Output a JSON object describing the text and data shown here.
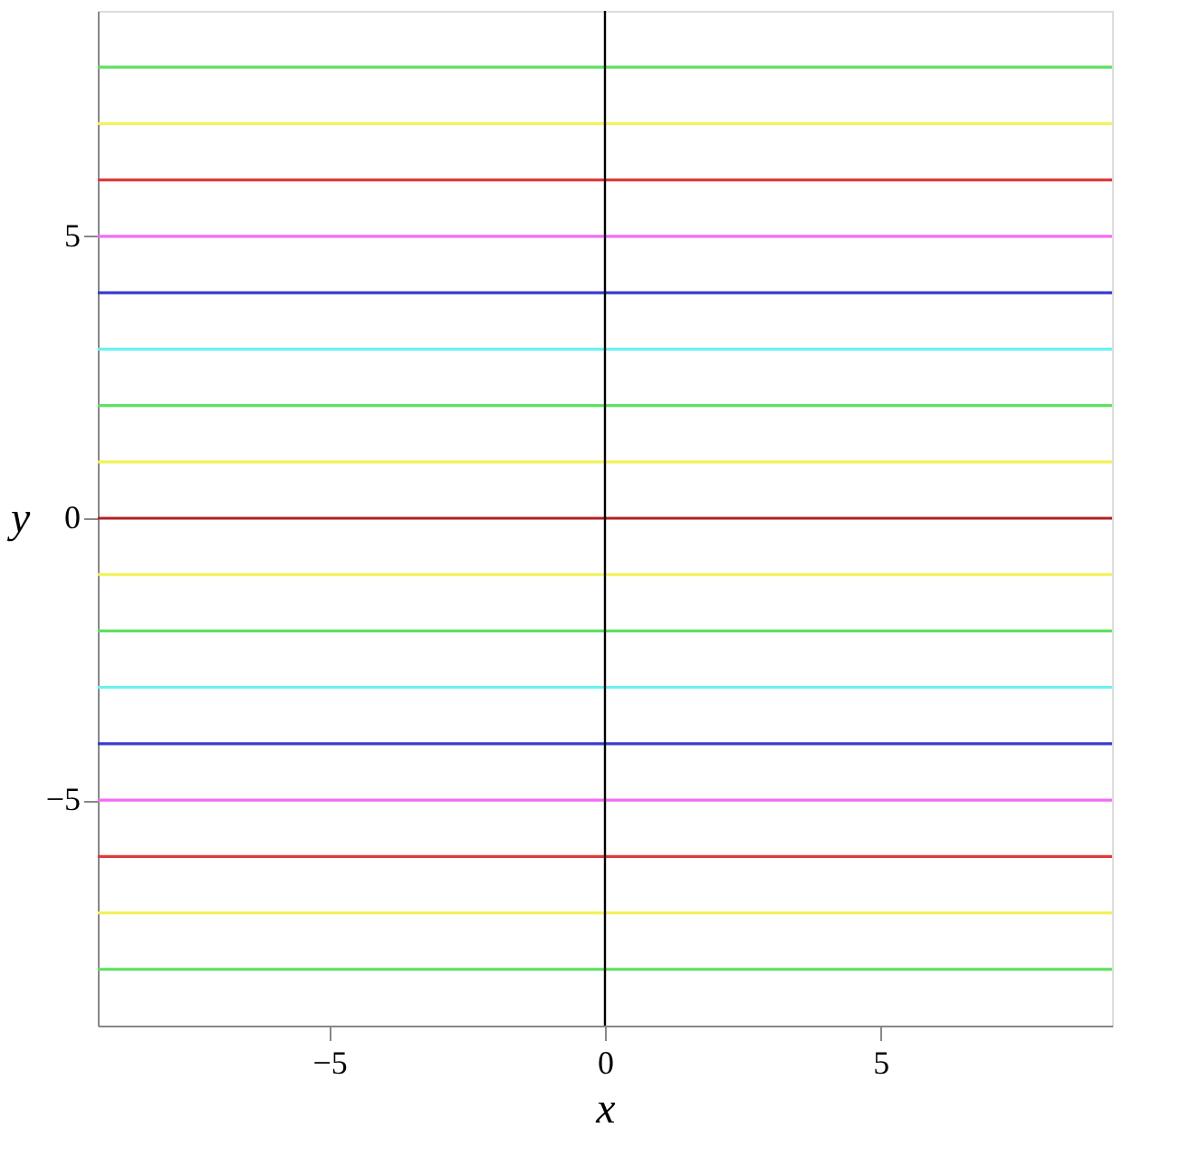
{
  "chart_data": {
    "type": "line",
    "xlabel": "x",
    "ylabel": "y",
    "xlim": [
      -9.2,
      9.2
    ],
    "ylim": [
      -9,
      9
    ],
    "xticks": [
      -5,
      0,
      5
    ],
    "yticks": [
      -5,
      0,
      5
    ],
    "grid": false,
    "legend": false,
    "marker": "none",
    "line_style": "solid",
    "x": [
      -9.2,
      9.2
    ],
    "series": [
      {
        "color": "#5fe05f",
        "values": [
          8,
          8
        ]
      },
      {
        "color": "#f2f25a",
        "values": [
          7,
          7
        ]
      },
      {
        "color": "#e03a3a",
        "values": [
          6,
          6
        ]
      },
      {
        "color": "#f56af5",
        "values": [
          5,
          5
        ]
      },
      {
        "color": "#3a3ad0",
        "values": [
          4,
          4
        ]
      },
      {
        "color": "#6af2f2",
        "values": [
          3,
          3
        ]
      },
      {
        "color": "#5fe05f",
        "values": [
          2,
          2
        ]
      },
      {
        "color": "#f2f25a",
        "values": [
          1,
          1
        ]
      },
      {
        "color": "#b02020",
        "values": [
          0,
          0
        ]
      },
      {
        "color": "#f2f25a",
        "values": [
          -1,
          -1
        ]
      },
      {
        "color": "#5fe05f",
        "values": [
          -2,
          -2
        ]
      },
      {
        "color": "#6af2f2",
        "values": [
          -3,
          -3
        ]
      },
      {
        "color": "#3a3ad0",
        "values": [
          -4,
          -4
        ]
      },
      {
        "color": "#f56af5",
        "values": [
          -5,
          -5
        ]
      },
      {
        "color": "#e03a3a",
        "values": [
          -6,
          -6
        ]
      },
      {
        "color": "#f2f25a",
        "values": [
          -7,
          -7
        ]
      },
      {
        "color": "#5fe05f",
        "values": [
          -8,
          -8
        ]
      }
    ],
    "ref_lines": [
      {
        "axis": "x",
        "value": 0,
        "color": "#000000",
        "line_style": "solid"
      }
    ]
  }
}
